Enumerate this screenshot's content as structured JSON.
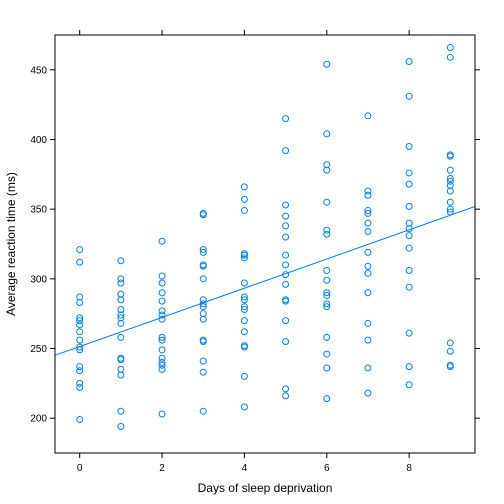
{
  "chart_data": {
    "type": "scatter",
    "title": "",
    "xlabel": "Days of sleep deprivation",
    "ylabel": "Average reaction time (ms)",
    "xlim": [
      -0.6,
      9.6
    ],
    "ylim": [
      175,
      475
    ],
    "x_ticks": [
      0,
      2,
      4,
      6,
      8
    ],
    "x_tick_labels": [
      "0",
      "2",
      "4",
      "6",
      "8"
    ],
    "y_ticks": [
      200,
      250,
      300,
      350,
      400,
      450
    ],
    "y_tick_labels": [
      "200",
      "250",
      "300",
      "350",
      "400",
      "450"
    ],
    "grid": false,
    "legend": "none",
    "colors": {
      "points": "#0080ff",
      "line": "#0080ff",
      "frame": "#000000"
    },
    "series": [
      {
        "values": [
          [
            0,
            321
          ],
          [
            0,
            312
          ],
          [
            0,
            287
          ],
          [
            0,
            283
          ],
          [
            0,
            272
          ],
          [
            0,
            270
          ],
          [
            0,
            267
          ],
          [
            0,
            262
          ],
          [
            0,
            256
          ],
          [
            0,
            251
          ],
          [
            0,
            249
          ],
          [
            0,
            237
          ],
          [
            0,
            234
          ],
          [
            0,
            225
          ],
          [
            0,
            222
          ],
          [
            0,
            199
          ],
          [
            1,
            313
          ],
          [
            1,
            300
          ],
          [
            1,
            297
          ],
          [
            1,
            289
          ],
          [
            1,
            285
          ],
          [
            1,
            278
          ],
          [
            1,
            274
          ],
          [
            1,
            272
          ],
          [
            1,
            268
          ],
          [
            1,
            258
          ],
          [
            1,
            243
          ],
          [
            1,
            242
          ],
          [
            1,
            235
          ],
          [
            1,
            231
          ],
          [
            1,
            205
          ],
          [
            1,
            194
          ],
          [
            2,
            327
          ],
          [
            2,
            302
          ],
          [
            2,
            297
          ],
          [
            2,
            290
          ],
          [
            2,
            284
          ],
          [
            2,
            277
          ],
          [
            2,
            274
          ],
          [
            2,
            271
          ],
          [
            2,
            258
          ],
          [
            2,
            256
          ],
          [
            2,
            249
          ],
          [
            2,
            243
          ],
          [
            2,
            240
          ],
          [
            2,
            238
          ],
          [
            2,
            235
          ],
          [
            2,
            203
          ],
          [
            3,
            347
          ],
          [
            3,
            346
          ],
          [
            3,
            321
          ],
          [
            3,
            319
          ],
          [
            3,
            310
          ],
          [
            3,
            309
          ],
          [
            3,
            300
          ],
          [
            3,
            285
          ],
          [
            3,
            282
          ],
          [
            3,
            280
          ],
          [
            3,
            275
          ],
          [
            3,
            271
          ],
          [
            3,
            256
          ],
          [
            3,
            255
          ],
          [
            3,
            241
          ],
          [
            3,
            233
          ],
          [
            3,
            205
          ],
          [
            4,
            366
          ],
          [
            4,
            357
          ],
          [
            4,
            349
          ],
          [
            4,
            318
          ],
          [
            4,
            317
          ],
          [
            4,
            315
          ],
          [
            4,
            297
          ],
          [
            4,
            287
          ],
          [
            4,
            285
          ],
          [
            4,
            280
          ],
          [
            4,
            278
          ],
          [
            4,
            270
          ],
          [
            4,
            262
          ],
          [
            4,
            252
          ],
          [
            4,
            251
          ],
          [
            4,
            230
          ],
          [
            4,
            208
          ],
          [
            5,
            415
          ],
          [
            5,
            392
          ],
          [
            5,
            353
          ],
          [
            5,
            345
          ],
          [
            5,
            338
          ],
          [
            5,
            330
          ],
          [
            5,
            317
          ],
          [
            5,
            310
          ],
          [
            5,
            303
          ],
          [
            5,
            296
          ],
          [
            5,
            285
          ],
          [
            5,
            284
          ],
          [
            5,
            270
          ],
          [
            5,
            255
          ],
          [
            5,
            221
          ],
          [
            5,
            216
          ],
          [
            6,
            454
          ],
          [
            6,
            404
          ],
          [
            6,
            382
          ],
          [
            6,
            378
          ],
          [
            6,
            355
          ],
          [
            6,
            335
          ],
          [
            6,
            332
          ],
          [
            6,
            306
          ],
          [
            6,
            299
          ],
          [
            6,
            290
          ],
          [
            6,
            288
          ],
          [
            6,
            282
          ],
          [
            6,
            280
          ],
          [
            6,
            258
          ],
          [
            6,
            246
          ],
          [
            6,
            236
          ],
          [
            6,
            214
          ],
          [
            7,
            417
          ],
          [
            7,
            363
          ],
          [
            7,
            360
          ],
          [
            7,
            349
          ],
          [
            7,
            347
          ],
          [
            7,
            340
          ],
          [
            7,
            334
          ],
          [
            7,
            319
          ],
          [
            7,
            309
          ],
          [
            7,
            304
          ],
          [
            7,
            290
          ],
          [
            7,
            268
          ],
          [
            7,
            256
          ],
          [
            7,
            236
          ],
          [
            7,
            218
          ],
          [
            8,
            456
          ],
          [
            8,
            431
          ],
          [
            8,
            395
          ],
          [
            8,
            376
          ],
          [
            8,
            368
          ],
          [
            8,
            352
          ],
          [
            8,
            340
          ],
          [
            8,
            336
          ],
          [
            8,
            331
          ],
          [
            8,
            322
          ],
          [
            8,
            306
          ],
          [
            8,
            294
          ],
          [
            8,
            261
          ],
          [
            8,
            237
          ],
          [
            8,
            224
          ],
          [
            9,
            466
          ],
          [
            9,
            459
          ],
          [
            9,
            389
          ],
          [
            9,
            388
          ],
          [
            9,
            378
          ],
          [
            9,
            372
          ],
          [
            9,
            370
          ],
          [
            9,
            367
          ],
          [
            9,
            363
          ],
          [
            9,
            355
          ],
          [
            9,
            350
          ],
          [
            9,
            348
          ],
          [
            9,
            254
          ],
          [
            9,
            248
          ],
          [
            9,
            238
          ],
          [
            9,
            237
          ]
        ]
      }
    ],
    "fit_line": {
      "type": "linear",
      "intercept": 251.4,
      "slope": 10.47
    }
  }
}
